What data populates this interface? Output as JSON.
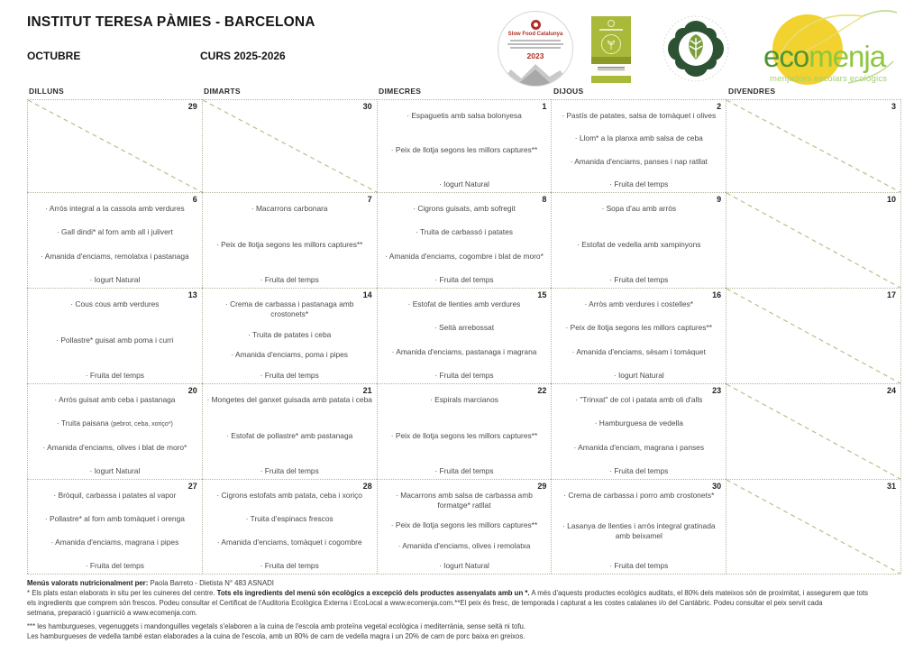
{
  "header": {
    "title": "INSTITUT TERESA PÀMIES - BARCELONA",
    "month": "OCTUBRE",
    "course": "CURS 2025-2026"
  },
  "logos": {
    "slow_food_name": "Slow Food Catalunya",
    "slow_food_year": "2023",
    "ecomenja_eco": "eco",
    "ecomenja_menja": "menja",
    "ecomenja_subtitle": "menjadors escolars ecològics"
  },
  "colors": {
    "ecomenja_dark_green": "#4f9433",
    "ecomenja_light_green": "#8dc63f",
    "logo_yellow": "#f2d22e",
    "slowfood_red": "#b03028",
    "grid_dotted": "#aeb99c",
    "diagonal_dash": "#b9c08c"
  },
  "calendar": {
    "day_headers": [
      "DILLUNS",
      "DIMARTS",
      "DIMECRES",
      "DIJOUS",
      "DIVENDRES"
    ],
    "weeks": [
      [
        {
          "day": "29",
          "items": []
        },
        {
          "day": "30",
          "items": []
        },
        {
          "day": "1",
          "items": [
            "· Espaguetis amb salsa bolonyesa",
            "· Peix de llotja segons les millors captures**",
            "· Iogurt Natural"
          ]
        },
        {
          "day": "2",
          "items": [
            "· Pastís de patates, salsa de tomàquet i olives",
            "· Llom* a la planxa amb salsa de ceba",
            "· Amanida d'enciams, panses i nap ratllat",
            "· Fruita del temps"
          ]
        },
        {
          "day": "3",
          "items": []
        }
      ],
      [
        {
          "day": "6",
          "items": [
            "· Arròs integral a la cassola amb verdures",
            "· Gall dindi* al forn amb all i julivert",
            "· Amanida d'enciams, remolatxa i pastanaga",
            "· Iogurt Natural"
          ]
        },
        {
          "day": "7",
          "items": [
            "· Macarrons carbonara",
            "· Peix de llotja segons les millors captures**",
            "· Fruita del temps"
          ]
        },
        {
          "day": "8",
          "items": [
            "· Cigrons guisats, amb sofregit",
            "· Truita de carbassó i patates",
            "· Amanida d'enciams, cogombre i blat de moro*",
            "· Fruita del temps"
          ]
        },
        {
          "day": "9",
          "items": [
            "· Sopa d'au amb arròs",
            "· Estofat de vedella amb xampinyons",
            "· Fruita del temps"
          ]
        },
        {
          "day": "10",
          "items": []
        }
      ],
      [
        {
          "day": "13",
          "items": [
            "· Cous cous amb verdures",
            "· Pollastre* guisat amb poma i curri",
            "· Fruita del temps"
          ]
        },
        {
          "day": "14",
          "items": [
            "· Crema de carbassa i pastanaga amb crostonets*",
            "· Truita de patates i ceba",
            "· Amanida d'enciams, poma i pipes",
            "· Fruita del temps"
          ]
        },
        {
          "day": "15",
          "items": [
            "· Estofat de llenties amb verdures",
            "· Seità arrebossat",
            "· Amanida d'enciams, pastanaga i magrana",
            "· Fruita del temps"
          ]
        },
        {
          "day": "16",
          "items": [
            "· Arròs amb verdures i costelles*",
            "· Peix de llotja segons les millors captures**",
            "· Amanida d'enciams, sèsam i tomàquet",
            "· Iogurt Natural"
          ]
        },
        {
          "day": "17",
          "items": []
        }
      ],
      [
        {
          "day": "20",
          "items": [
            "· Arròs guisat amb ceba i pastanaga",
            "· Truita paisana (pebrot, ceba, xoriço*)",
            "· Amanida d'enciams, olives i blat de moro*",
            "· Iogurt Natural"
          ]
        },
        {
          "day": "21",
          "items": [
            "· Mongetes del ganxet guisada amb patata i ceba",
            "· Estofat de pollastre* amb pastanaga",
            "· Fruita del temps"
          ]
        },
        {
          "day": "22",
          "items": [
            "· Espirals marcianos",
            "· Peix de llotja segons les millors captures**",
            "· Fruita del temps"
          ]
        },
        {
          "day": "23",
          "items": [
            "· \"Trinxat\" de col i patata amb oli d'alls",
            "· Hamburguesa de vedella",
            "· Amanida d'enciam, magrana i panses",
            "· Fruita del temps"
          ]
        },
        {
          "day": "24",
          "items": []
        }
      ],
      [
        {
          "day": "27",
          "items": [
            "· Bròquil, carbassa i patates al vapor",
            "· Pollastre* al forn amb tomàquet i orenga",
            "· Amanida d'enciams, magrana i pipes",
            "· Fruita del temps"
          ]
        },
        {
          "day": "28",
          "items": [
            "· Cigrons estofats amb patata, ceba i xoriço",
            "· Truita d'espinacs frescos",
            "· Amanida d'enciams, tomàquet i cogombre",
            "· Fruita del temps"
          ]
        },
        {
          "day": "29",
          "items": [
            "· Macarrons amb salsa de carbassa amb formatge* ratllat",
            "· Peix de llotja segons les millors captures**",
            "· Amanida d'enciams, olives i remolatxa",
            "· Iogurt Natural"
          ]
        },
        {
          "day": "30",
          "items": [
            "· Crema de carbassa i porro amb crostonets*",
            "· Lasanya de llenties i arròs integral gratinada amb beixamel",
            "· Fruita del temps"
          ]
        },
        {
          "day": "31",
          "items": []
        }
      ]
    ]
  },
  "footer": {
    "lines": [
      {
        "segments": [
          {
            "text": "Menús valorats nutricionalment per:",
            "bold": true
          },
          {
            "text": " Paola Barreto - Dietista N° 483 ASNADI",
            "bold": false
          }
        ]
      },
      {
        "segments": [
          {
            "text": "* Els plats estan elaborats in situ per les cuineres del centre. ",
            "bold": false
          },
          {
            "text": "Tots els ingredients del menú són ecològics a excepció dels productes assenyalats amb un *.",
            "bold": true
          },
          {
            "text": "  A més d'aquests productes ecològics auditats, el 80% dels mateixos són de proximitat, i assegurem que tots",
            "bold": false
          }
        ]
      },
      {
        "segments": [
          {
            "text": "els ingredients que comprem són frescos. Podeu consultar el Certificat de l'Auditoria Ecològica Externa i EcoLocal a www.ecomenja.com.**El peix és fresc, de temporada i capturat a les costes catalanes i/o del Cantàbric. Podeu consultar el peix servit cada",
            "bold": false
          }
        ]
      },
      {
        "segments": [
          {
            "text": "setmana, preparació  i guarnició a www.ecomenja.com.",
            "bold": false
          }
        ]
      },
      {
        "gap": true,
        "segments": [
          {
            "text": "*** les hamburgueses, vegenuggets i mandonguilles vegetals s'elaboren a la cuina de l'escola amb proteïna vegetal ecològica i  mediterrània, sense seità ni tofu.",
            "bold": false
          }
        ]
      },
      {
        "segments": [
          {
            "text": "Les hamburgueses de vedella també estan elaborades a la cuina de l'escola, amb un 80% de carn de vedella magra i un 20% de carn de porc baixa en greixos.",
            "bold": false
          }
        ]
      }
    ]
  }
}
